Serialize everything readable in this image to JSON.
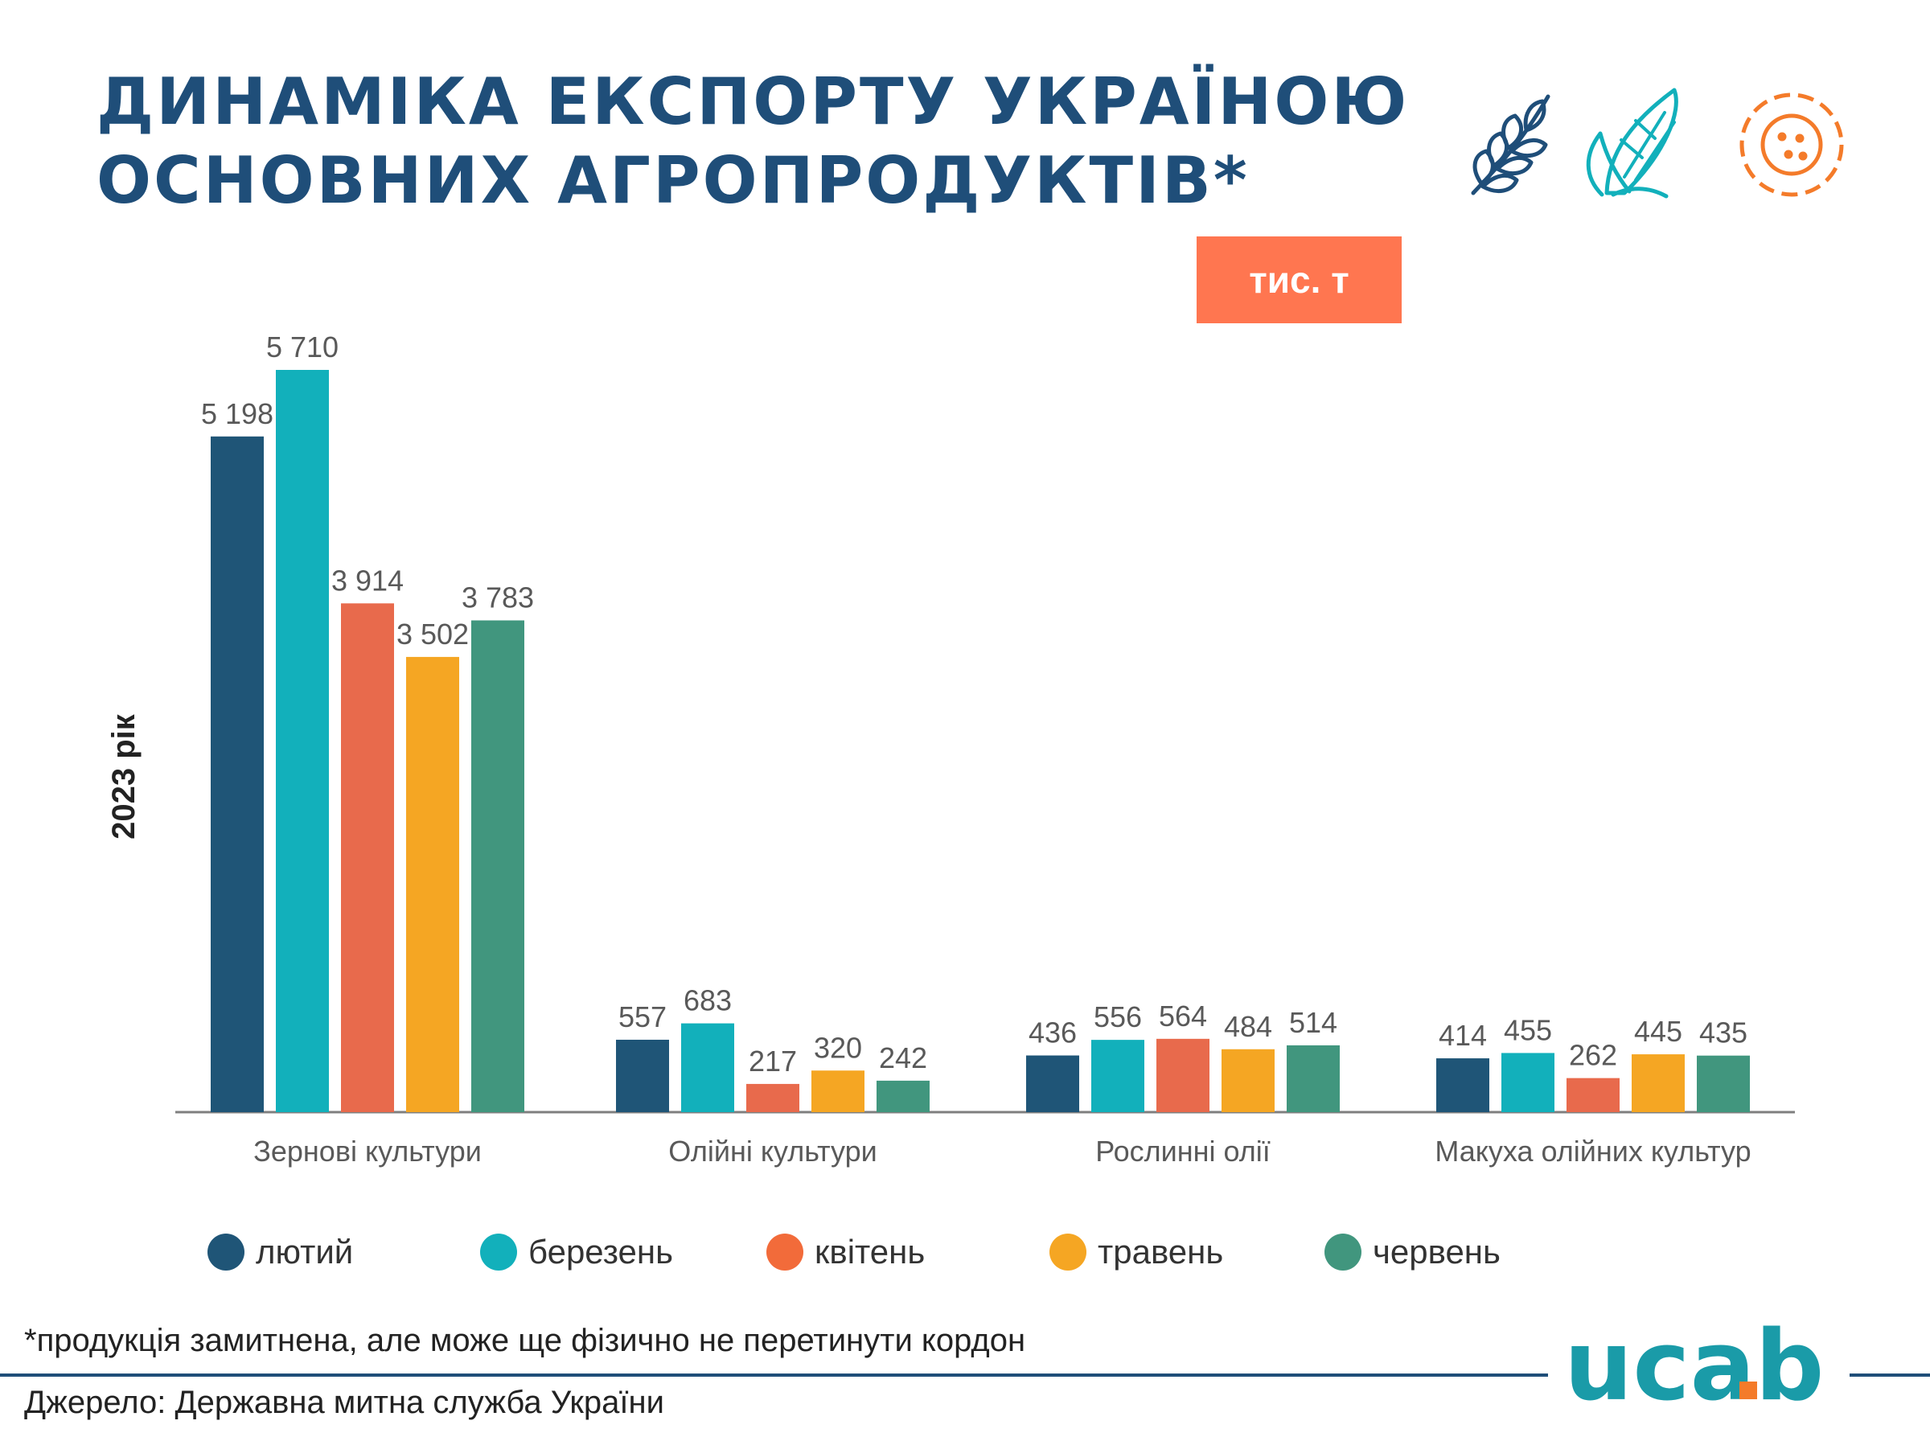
{
  "title": {
    "line1": "ДИНАМІКА ЕКСПОРТУ УКРАЇНОЮ",
    "line2": "ОСНОВНИХ АГРОПРОДУКТІВ*"
  },
  "unit_badge": "тис. т",
  "year_label": "2023 рік",
  "icons": [
    "wheat-icon",
    "corn-icon",
    "sunflower-icon"
  ],
  "footnote": "*продукція замитнена, але може ще фізично не перетинути кордон",
  "source": "Джерело: Державна митна служба України",
  "logo": "ucab",
  "colors": {
    "title": "#1f4e79",
    "badge": "#ff7650",
    "axis": "#7f7f7f",
    "value_labels": "#595959",
    "logo_teal": "#1a9ba8",
    "logo_orange": "#f47b2a"
  },
  "chart_data": {
    "type": "bar",
    "title": "ДИНАМІКА ЕКСПОРТУ УКРАЇНОЮ ОСНОВНИХ АГРОПРОДУКТІВ*",
    "ylabel": "2023 рік",
    "unit": "тис. т",
    "categories": [
      "Зернові культури",
      "Олійні культури",
      "Рослинні олії",
      "Макуха олійних культур"
    ],
    "series": [
      {
        "name": "лютий",
        "color": "#1f5577",
        "values": [
          5198,
          557,
          436,
          414
        ],
        "labels": [
          "5 198",
          "557",
          "436",
          "414"
        ]
      },
      {
        "name": "березень",
        "color": "#12b0bb",
        "values": [
          5710,
          683,
          556,
          455
        ],
        "labels": [
          "5 710",
          "683",
          "556",
          "455"
        ]
      },
      {
        "name": "квітень",
        "color": "#e86a4c",
        "values": [
          3914,
          217,
          564,
          262
        ],
        "labels": [
          "3 914",
          "217",
          "564",
          "262"
        ]
      },
      {
        "name": "травень",
        "color": "#f5a623",
        "values": [
          3502,
          320,
          484,
          445
        ],
        "labels": [
          "3 502",
          "320",
          "484",
          "445"
        ]
      },
      {
        "name": "червень",
        "color": "#41967e",
        "values": [
          3783,
          242,
          514,
          435
        ],
        "labels": [
          "3 783",
          "242",
          "514",
          "435"
        ]
      }
    ],
    "ylim": [
      0,
      5710
    ],
    "grid": false,
    "legend_position": "bottom"
  }
}
